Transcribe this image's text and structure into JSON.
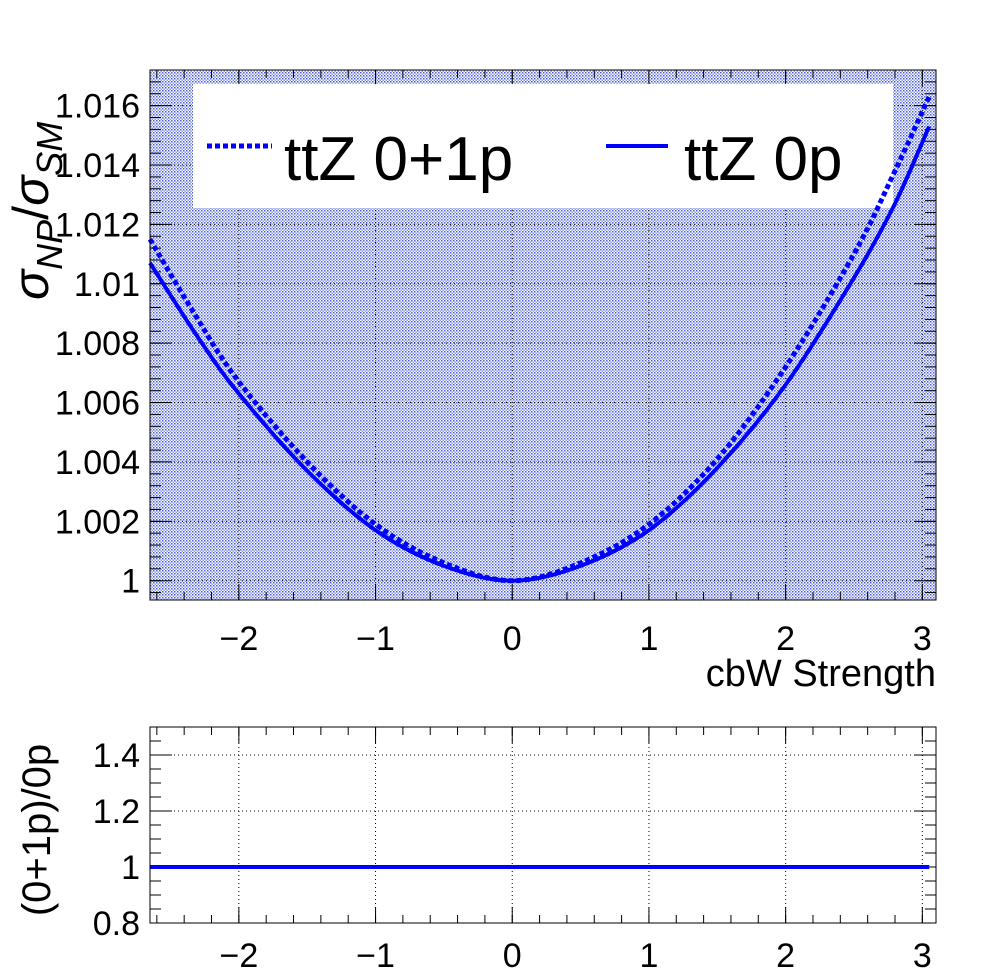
{
  "chart_data": [
    {
      "type": "line",
      "panel": "main",
      "xlabel": "cbW Strength",
      "ylabel": "σ_NP/σ_SM",
      "ylabel_parts": {
        "sym1": "σ",
        "sub1": "NP",
        "slash": "/",
        "sym2": "σ",
        "sub2": "SM"
      },
      "xlim": [
        -2.65,
        3.1
      ],
      "ylim": [
        0.99935,
        1.0172
      ],
      "x_ticks": [
        -2,
        -1,
        0,
        1,
        2,
        3
      ],
      "x_tick_labels": [
        "−2",
        "−1",
        "0",
        "1",
        "2",
        "3"
      ],
      "y_ticks": [
        1.0,
        1.002,
        1.004,
        1.006,
        1.008,
        1.01,
        1.012,
        1.014,
        1.016
      ],
      "y_tick_labels": [
        "1",
        "1.002",
        "1.004",
        "1.006",
        "1.008",
        "1.01",
        "1.012",
        "1.014",
        "1.016"
      ],
      "grid": true,
      "legend_position": "top",
      "series": [
        {
          "name": "ttZ 0+1p",
          "style": "dotted",
          "color": "#0000ff",
          "x": [
            -2.65,
            -2.3,
            -2.0,
            -1.5,
            -1.0,
            -0.5,
            0.0,
            0.5,
            1.0,
            1.5,
            2.0,
            2.5,
            2.8,
            3.05
          ],
          "y": [
            1.0115,
            1.0088,
            1.0067,
            1.004,
            1.0019,
            1.0006,
            1.0,
            1.0006,
            1.0019,
            1.0041,
            1.0072,
            1.011,
            1.0138,
            1.0163
          ]
        },
        {
          "name": "ttZ 0p",
          "style": "solid",
          "color": "#0000ff",
          "x": [
            -2.65,
            -2.3,
            -2.0,
            -1.5,
            -1.0,
            -0.5,
            0.0,
            0.5,
            1.0,
            1.5,
            2.0,
            2.5,
            2.8,
            3.05
          ],
          "y": [
            1.0107,
            1.0082,
            1.0063,
            1.0037,
            1.0017,
            1.0005,
            1.0,
            1.0005,
            1.0017,
            1.0038,
            1.0066,
            1.0102,
            1.0127,
            1.0153
          ]
        }
      ]
    },
    {
      "type": "line",
      "panel": "ratio",
      "xlabel": "",
      "ylabel": "(0+1p)/0p",
      "xlim": [
        -2.65,
        3.1
      ],
      "ylim": [
        0.8,
        1.5
      ],
      "x_ticks": [
        -2,
        -1,
        0,
        1,
        2,
        3
      ],
      "x_tick_labels": [
        "−2",
        "−1",
        "0",
        "1",
        "2",
        "3"
      ],
      "y_ticks": [
        0.8,
        1.0,
        1.2,
        1.4
      ],
      "y_tick_labels": [
        "0.8",
        "1",
        "1.2",
        "1.4"
      ],
      "grid": true,
      "series": [
        {
          "color": "#0000ff",
          "x": [
            -2.65,
            -1.0,
            0.0,
            1.0,
            3.05
          ],
          "y": [
            1.0,
            1.0,
            1.0,
            1.0,
            1.0
          ]
        }
      ]
    }
  ]
}
